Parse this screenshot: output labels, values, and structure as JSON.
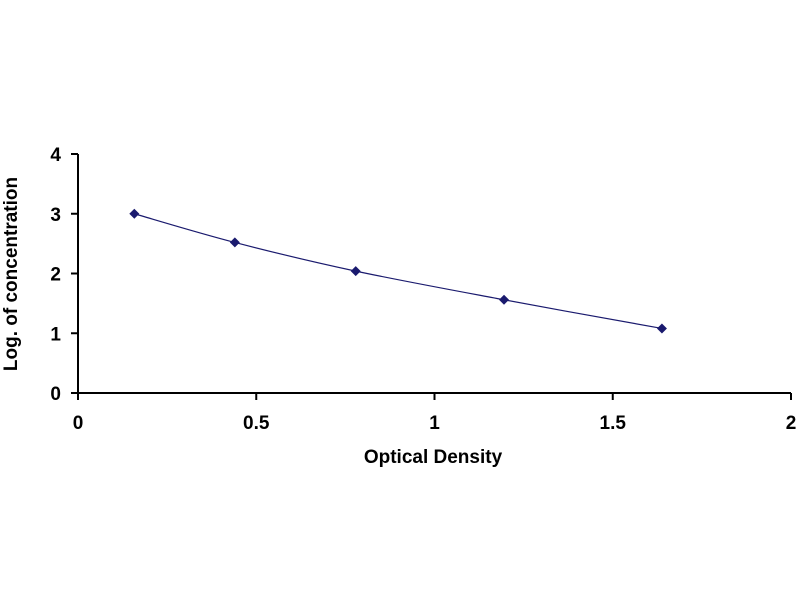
{
  "chart_data": {
    "type": "scatter",
    "title": "",
    "xlabel": "Optical Density",
    "ylabel": "Log. of concentration",
    "xlim": [
      0,
      2
    ],
    "ylim": [
      0,
      4
    ],
    "x_ticks": [
      0,
      0.5,
      1,
      1.5,
      2
    ],
    "x_tick_labels": [
      "0",
      "0.5",
      "1",
      "1.5",
      "2"
    ],
    "y_ticks": [
      0,
      1,
      2,
      3,
      4
    ],
    "y_tick_labels": [
      "0",
      "1",
      "2",
      "3",
      "4"
    ],
    "grid": false,
    "legend": "none",
    "series": [
      {
        "x": [
          0.158,
          0.44,
          0.779,
          1.195,
          1.638
        ],
        "y": [
          3.0,
          2.52,
          2.04,
          1.56,
          1.08
        ],
        "marker": "diamond",
        "trendline": "smooth",
        "color": "#1a1a6e"
      }
    ]
  },
  "colors": {
    "axis": "#000000",
    "marker": "#1a1a6e",
    "line": "#1a1a6e"
  }
}
